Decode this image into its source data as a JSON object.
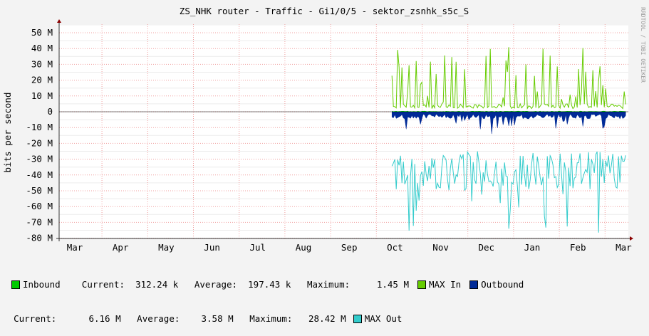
{
  "chart_data": {
    "type": "area",
    "title": "ZS_NHK router - Traffic - Gi1/0/5 - sektor_zsnhk_s5c_S",
    "ylabel": "bits per second",
    "watermark": "RRDTOOL / TOBI OETIKER",
    "categories": [
      "Mar",
      "Apr",
      "May",
      "Jun",
      "Jul",
      "Aug",
      "Sep",
      "Oct",
      "Nov",
      "Dec",
      "Jan",
      "Feb",
      "Mar"
    ],
    "y_ticks": [
      "50 M",
      "40 M",
      "30 M",
      "20 M",
      "10 M",
      "0",
      "-10 M",
      "-20 M",
      "-30 M",
      "-40 M",
      "-50 M",
      "-60 M",
      "-70 M",
      "-80 M"
    ],
    "ylim": [
      -80,
      55
    ],
    "y_unit": "Mbit/s",
    "data_start_month": 6.95,
    "grid": true,
    "series": [
      {
        "name": "Inbound",
        "color": "#00cc00",
        "kind": "area",
        "average_mbps": 0.2,
        "max_mbps": 1.45
      },
      {
        "name": "MAX In",
        "color": "#66cc00",
        "kind": "line",
        "typical_low_mbps": 2,
        "peak_mbps": 42
      },
      {
        "name": "Outbound",
        "color": "#002a97",
        "kind": "area",
        "sign": "negative",
        "typical_mbps": 3.6,
        "peak_mbps": 28.4
      },
      {
        "name": "MAX Out",
        "color": "#33cccc",
        "kind": "line",
        "sign": "negative",
        "typical_low_mbps": 25,
        "peak_mbps": 79
      }
    ]
  },
  "legend": {
    "row1": {
      "inbound_label": "Inbound",
      "current_label": "Current:",
      "current_value": "312.24 k",
      "average_label": "Average:",
      "average_value": "197.43 k",
      "maximum_label": "Maximum:",
      "maximum_value": "1.45 M",
      "max_in_label": "MAX In",
      "outbound_label": "Outbound"
    },
    "row2": {
      "current_label": "Current:",
      "current_value": "6.16 M",
      "average_label": "Average:",
      "average_value": "3.58 M",
      "maximum_label": "Maximum:",
      "maximum_value": "28.42 M",
      "max_out_label": "MAX Out"
    },
    "colors": {
      "inbound": "#00cc00",
      "max_in": "#66cc00",
      "outbound": "#002a97",
      "max_out": "#33cccc"
    }
  }
}
